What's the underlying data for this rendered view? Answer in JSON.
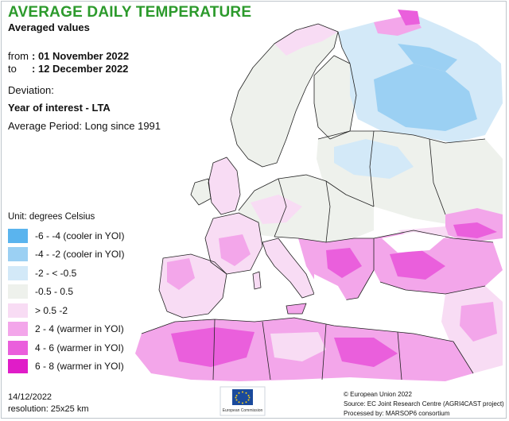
{
  "title": "AVERAGE DAILY TEMPERATURE",
  "subtitle": "Averaged values",
  "period": {
    "from_label": "from",
    "from_value": ": 01 November 2022",
    "to_label": "to",
    "to_value": ": 12 December 2022"
  },
  "deviation_label": "Deviation:",
  "comparison": "Year of interest - LTA",
  "average_period": "Average Period: Long since 1991",
  "legend": {
    "unit": "Unit: degrees Celsius",
    "items": [
      {
        "label": "-6 - -4 (cooler in YOI)",
        "color": "#5ab4ee"
      },
      {
        "label": "-4 - -2 (cooler in YOI)",
        "color": "#9bd0f3"
      },
      {
        "label": "-2 - < -0.5",
        "color": "#d3e9f8"
      },
      {
        "label": "-0.5 - 0.5",
        "color": "#eef1ec"
      },
      {
        "label": "> 0.5 -2",
        "color": "#f8dcf4"
      },
      {
        "label": "2 - 4 (warmer in YOI)",
        "color": "#f3a6ea"
      },
      {
        "label": "4 - 6 (warmer in YOI)",
        "color": "#ea5fdc"
      },
      {
        "label": "6 - 8 (warmer in YOI)",
        "color": "#e01cc8"
      }
    ]
  },
  "footer": {
    "date": "14/12/2022",
    "resolution": "resolution: 25x25 km",
    "eu_logo_text": "European Commission",
    "credit_1": "© European Union 2022",
    "credit_2": "Source: EC Joint Research Centre (AGRI4CAST project)",
    "credit_3": "Processed by: MARSOP6 consortium"
  },
  "colors": {
    "title": "#2c9a2c",
    "sea": "#ffffff",
    "border": "#222222"
  }
}
